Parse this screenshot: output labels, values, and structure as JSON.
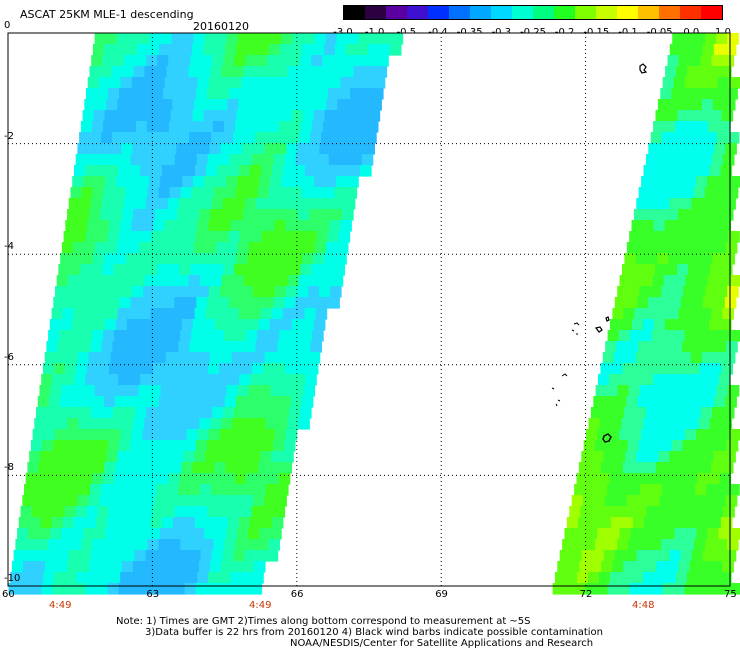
{
  "header": {
    "title": "ASCAT 25KM MLE-1 descending",
    "date": "20160120"
  },
  "colorbar": {
    "labels": [
      "-3.0",
      "-1.0",
      "-0.5",
      "-0.4",
      "-0.35",
      "-0.3",
      "-0.25",
      "-0.2",
      "-0.15",
      "-0.1",
      "-0.05",
      "0.0",
      "1.0"
    ],
    "colors": [
      "#000000",
      "#2a0040",
      "#5a00a0",
      "#4010d0",
      "#0030ff",
      "#0070ff",
      "#00a8ff",
      "#00d8ff",
      "#00ffd0",
      "#00ff80",
      "#20ff20",
      "#80ff00",
      "#c8ff00",
      "#ffff00",
      "#ffc000",
      "#ff7000",
      "#ff3000",
      "#ff0000"
    ]
  },
  "map": {
    "x_axis": {
      "range": [
        60,
        75
      ],
      "ticks": [
        "60",
        "63",
        "66",
        "69",
        "72",
        "75"
      ]
    },
    "y_axis": {
      "range": [
        -10,
        0
      ],
      "ticks": [
        "0",
        "-2",
        "-4",
        "-6",
        "-8",
        "-10"
      ]
    },
    "time_labels": [
      "4:49",
      "4:49",
      "4:48"
    ],
    "swaths": [
      {
        "name": "western",
        "lon_range_top": [
          61.8,
          68.0
        ],
        "lon_range_bottom": [
          60.0,
          65.2
        ],
        "dominant": "cyan-green"
      },
      {
        "name": "eastern",
        "lon_range_top": [
          73.8,
          75.0
        ],
        "lon_range_bottom": [
          71.3,
          75.0
        ],
        "dominant": "green"
      }
    ]
  },
  "footer": {
    "note_line1": "Note: 1) Times are GMT 2)Times along bottom correspond to measurement at ~5S",
    "note_line2": "3)Data buffer is 22 hrs from 20160120 4) Black wind barbs indicate possible contamination",
    "credit": "NOAA/NESDIS/Center for Satellite Applications and Research"
  }
}
